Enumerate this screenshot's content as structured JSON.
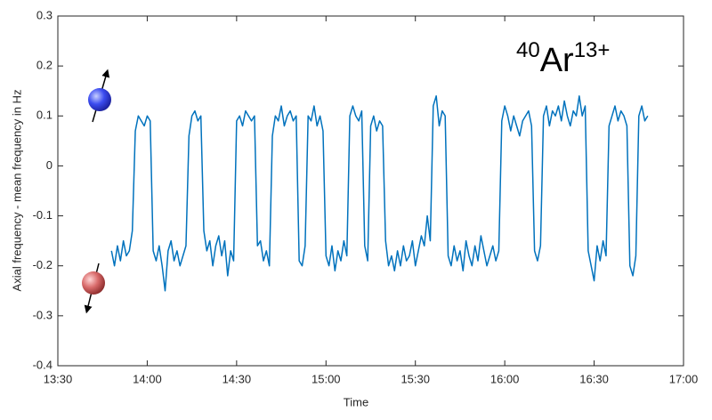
{
  "chart_data": {
    "type": "line",
    "xlabel": "Time",
    "ylabel": "Axial frequency - mean frequency in Hz",
    "annotation": {
      "mass": "40",
      "element": "Ar",
      "charge": "13+"
    },
    "color": "#0072bd",
    "xlim": [
      810,
      1020
    ],
    "xticks": [
      {
        "value": 810,
        "label": "13:30"
      },
      {
        "value": 840,
        "label": "14:00"
      },
      {
        "value": 870,
        "label": "14:30"
      },
      {
        "value": 900,
        "label": "15:00"
      },
      {
        "value": 930,
        "label": "15:30"
      },
      {
        "value": 960,
        "label": "16:00"
      },
      {
        "value": 990,
        "label": "16:30"
      },
      {
        "value": 1020,
        "label": "17:00"
      }
    ],
    "ylim": [
      -0.4,
      0.3
    ],
    "yticks": [
      -0.4,
      -0.3,
      -0.2,
      -0.1,
      0,
      0.1,
      0.2,
      0.3
    ],
    "x": [
      828,
      829,
      830,
      831,
      832,
      833,
      834,
      835,
      836,
      837,
      838,
      839,
      840,
      841,
      842,
      843,
      844,
      845,
      846,
      847,
      848,
      849,
      850,
      851,
      852,
      853,
      854,
      855,
      856,
      857,
      858,
      859,
      860,
      861,
      862,
      863,
      864,
      865,
      866,
      867,
      868,
      869,
      870,
      871,
      872,
      873,
      874,
      875,
      876,
      877,
      878,
      879,
      880,
      881,
      882,
      883,
      884,
      885,
      886,
      887,
      888,
      889,
      890,
      891,
      892,
      893,
      894,
      895,
      896,
      897,
      898,
      899,
      900,
      901,
      902,
      903,
      904,
      905,
      906,
      907,
      908,
      909,
      910,
      911,
      912,
      913,
      914,
      915,
      916,
      917,
      918,
      919,
      920,
      921,
      922,
      923,
      924,
      925,
      926,
      927,
      928,
      929,
      930,
      931,
      932,
      933,
      934,
      935,
      936,
      937,
      938,
      939,
      940,
      941,
      942,
      943,
      944,
      945,
      946,
      947,
      948,
      949,
      950,
      951,
      952,
      953,
      954,
      955,
      956,
      957,
      958,
      959,
      960,
      961,
      962,
      963,
      964,
      965,
      966,
      967,
      968,
      969,
      970,
      971,
      972,
      973,
      974,
      975,
      976,
      977,
      978,
      979,
      980,
      981,
      982,
      983,
      984,
      985,
      986,
      987,
      988,
      989,
      990,
      991,
      992,
      993,
      994,
      995,
      996,
      997,
      998,
      999,
      1000,
      1001,
      1002,
      1003,
      1004,
      1005,
      1006,
      1007,
      1008
    ],
    "values": [
      -0.17,
      -0.2,
      -0.16,
      -0.19,
      -0.15,
      -0.18,
      -0.17,
      -0.13,
      0.07,
      0.1,
      0.09,
      0.08,
      0.1,
      0.09,
      -0.17,
      -0.19,
      -0.16,
      -0.2,
      -0.25,
      -0.17,
      -0.15,
      -0.19,
      -0.17,
      -0.2,
      -0.18,
      -0.16,
      0.06,
      0.1,
      0.11,
      0.09,
      0.1,
      -0.13,
      -0.17,
      -0.15,
      -0.2,
      -0.16,
      -0.14,
      -0.18,
      -0.15,
      -0.22,
      -0.17,
      -0.19,
      0.09,
      0.1,
      0.08,
      0.11,
      0.1,
      0.09,
      0.1,
      -0.16,
      -0.15,
      -0.19,
      -0.17,
      -0.2,
      0.06,
      0.1,
      0.09,
      0.12,
      0.08,
      0.1,
      0.11,
      0.09,
      0.1,
      -0.19,
      -0.2,
      -0.16,
      0.1,
      0.09,
      0.12,
      0.08,
      0.1,
      0.07,
      -0.18,
      -0.2,
      -0.16,
      -0.21,
      -0.17,
      -0.19,
      -0.15,
      -0.18,
      0.1,
      0.12,
      0.1,
      0.09,
      0.11,
      -0.16,
      -0.19,
      0.08,
      0.1,
      0.07,
      0.09,
      0.08,
      -0.15,
      -0.2,
      -0.18,
      -0.21,
      -0.17,
      -0.2,
      -0.16,
      -0.19,
      -0.18,
      -0.15,
      -0.2,
      -0.17,
      -0.14,
      -0.16,
      -0.1,
      -0.15,
      0.12,
      0.14,
      0.08,
      0.11,
      0.1,
      -0.18,
      -0.2,
      -0.16,
      -0.19,
      -0.17,
      -0.21,
      -0.15,
      -0.18,
      -0.2,
      -0.16,
      -0.19,
      -0.14,
      -0.17,
      -0.2,
      -0.18,
      -0.16,
      -0.19,
      -0.17,
      0.09,
      0.12,
      0.1,
      0.07,
      0.1,
      0.08,
      0.06,
      0.09,
      0.1,
      0.11,
      0.08,
      -0.17,
      -0.19,
      -0.16,
      0.1,
      0.12,
      0.08,
      0.11,
      0.1,
      0.12,
      0.09,
      0.13,
      0.1,
      0.08,
      0.11,
      0.1,
      0.14,
      0.1,
      0.12,
      -0.17,
      -0.2,
      -0.23,
      -0.16,
      -0.19,
      -0.15,
      -0.18,
      0.08,
      0.1,
      0.12,
      0.09,
      0.11,
      0.1,
      0.08,
      -0.2,
      -0.22,
      -0.18,
      0.1,
      0.12,
      0.09,
      0.1
    ]
  }
}
